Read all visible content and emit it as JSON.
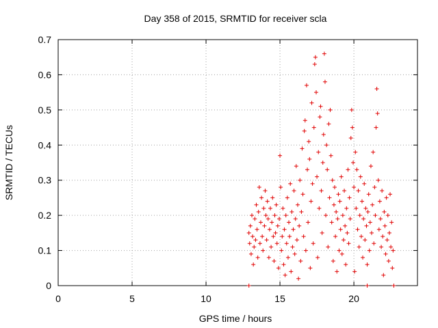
{
  "chart_data": {
    "type": "scatter",
    "title": "Day 358 of 2015, SRMTID for receiver scla",
    "xlabel": "GPS time / hours",
    "ylabel": "SRMTID / TECUs",
    "xlim": [
      0,
      24.3
    ],
    "ylim": [
      0,
      0.7
    ],
    "xticks": [
      0,
      5,
      10,
      15,
      20
    ],
    "yticks": [
      0,
      0.1,
      0.2,
      0.3,
      0.4,
      0.5,
      0.6,
      0.7
    ],
    "xtick_labels": [
      "0",
      "5",
      "10",
      "15",
      "20"
    ],
    "ytick_labels": [
      "0",
      "0.1",
      "0.2",
      "0.3",
      "0.4",
      "0.5",
      "0.6",
      "0.7"
    ],
    "grid": true,
    "marker": "+",
    "color": "#e00000",
    "series": [
      {
        "name": "SRMTID",
        "points": [
          [
            12.9,
            0.0
          ],
          [
            20.9,
            0.0
          ],
          [
            22.7,
            0.0
          ],
          [
            12.9,
            0.15
          ],
          [
            12.95,
            0.12
          ],
          [
            13.0,
            0.17
          ],
          [
            13.05,
            0.09
          ],
          [
            13.1,
            0.2
          ],
          [
            13.15,
            0.14
          ],
          [
            13.2,
            0.06
          ],
          [
            13.25,
            0.11
          ],
          [
            13.3,
            0.19
          ],
          [
            13.35,
            0.13
          ],
          [
            13.4,
            0.23
          ],
          [
            13.45,
            0.16
          ],
          [
            13.5,
            0.08
          ],
          [
            13.55,
            0.21
          ],
          [
            13.6,
            0.28
          ],
          [
            13.65,
            0.12
          ],
          [
            13.7,
            0.18
          ],
          [
            13.75,
            0.25
          ],
          [
            13.8,
            0.14
          ],
          [
            13.85,
            0.1
          ],
          [
            13.9,
            0.22
          ],
          [
            13.95,
            0.17
          ],
          [
            14.0,
            0.27
          ],
          [
            14.05,
            0.2
          ],
          [
            14.1,
            0.13
          ],
          [
            14.15,
            0.24
          ],
          [
            14.2,
            0.19
          ],
          [
            14.25,
            0.08
          ],
          [
            14.3,
            0.16
          ],
          [
            14.35,
            0.22
          ],
          [
            14.4,
            0.11
          ],
          [
            14.45,
            0.18
          ],
          [
            14.5,
            0.25
          ],
          [
            14.55,
            0.14
          ],
          [
            14.6,
            0.07
          ],
          [
            14.65,
            0.2
          ],
          [
            14.7,
            0.15
          ],
          [
            14.75,
            0.23
          ],
          [
            14.8,
            0.12
          ],
          [
            14.85,
            0.17
          ],
          [
            14.9,
            0.05
          ],
          [
            14.95,
            0.19
          ],
          [
            15.0,
            0.37
          ],
          [
            15.05,
            0.28
          ],
          [
            15.1,
            0.1
          ],
          [
            15.15,
            0.14
          ],
          [
            15.2,
            0.22
          ],
          [
            15.25,
            0.06
          ],
          [
            15.3,
            0.16
          ],
          [
            15.35,
            0.03
          ],
          [
            15.4,
            0.2
          ],
          [
            15.45,
            0.12
          ],
          [
            15.5,
            0.25
          ],
          [
            15.55,
            0.08
          ],
          [
            15.6,
            0.18
          ],
          [
            15.65,
            0.14
          ],
          [
            15.7,
            0.29
          ],
          [
            15.75,
            0.04
          ],
          [
            15.8,
            0.21
          ],
          [
            15.85,
            0.11
          ],
          [
            15.9,
            0.16
          ],
          [
            15.95,
            0.27
          ],
          [
            16.0,
            0.09
          ],
          [
            16.05,
            0.19
          ],
          [
            16.1,
            0.34
          ],
          [
            16.15,
            0.13
          ],
          [
            16.2,
            0.23
          ],
          [
            16.25,
            0.02
          ],
          [
            16.3,
            0.17
          ],
          [
            16.35,
            0.3
          ],
          [
            16.4,
            0.07
          ],
          [
            16.45,
            0.21
          ],
          [
            16.5,
            0.39
          ],
          [
            16.55,
            0.26
          ],
          [
            16.6,
            0.14
          ],
          [
            16.65,
            0.44
          ],
          [
            16.7,
            0.47
          ],
          [
            16.75,
            0.1
          ],
          [
            16.8,
            0.57
          ],
          [
            16.85,
            0.33
          ],
          [
            16.9,
            0.18
          ],
          [
            16.95,
            0.41
          ],
          [
            17.0,
            0.36
          ],
          [
            17.05,
            0.05
          ],
          [
            17.1,
            0.24
          ],
          [
            17.15,
            0.52
          ],
          [
            17.2,
            0.29
          ],
          [
            17.25,
            0.12
          ],
          [
            17.3,
            0.45
          ],
          [
            17.35,
            0.63
          ],
          [
            17.4,
            0.65
          ],
          [
            17.45,
            0.55
          ],
          [
            17.5,
            0.31
          ],
          [
            17.55,
            0.08
          ],
          [
            17.6,
            0.38
          ],
          [
            17.65,
            0.22
          ],
          [
            17.7,
            0.48
          ],
          [
            17.75,
            0.51
          ],
          [
            17.8,
            0.27
          ],
          [
            17.85,
            0.15
          ],
          [
            17.9,
            0.35
          ],
          [
            17.95,
            0.43
          ],
          [
            18.0,
            0.66
          ],
          [
            18.05,
            0.58
          ],
          [
            18.1,
            0.2
          ],
          [
            18.15,
            0.4
          ],
          [
            18.2,
            0.33
          ],
          [
            18.25,
            0.11
          ],
          [
            18.3,
            0.46
          ],
          [
            18.35,
            0.25
          ],
          [
            18.4,
            0.5
          ],
          [
            18.45,
            0.37
          ],
          [
            18.5,
            0.18
          ],
          [
            18.55,
            0.3
          ],
          [
            18.6,
            0.07
          ],
          [
            18.65,
            0.23
          ],
          [
            18.7,
            0.28
          ],
          [
            18.75,
            0.14
          ],
          [
            18.8,
            0.21
          ],
          [
            18.85,
            0.04
          ],
          [
            18.9,
            0.19
          ],
          [
            18.95,
            0.26
          ],
          [
            19.0,
            0.1
          ],
          [
            19.05,
            0.24
          ],
          [
            19.1,
            0.16
          ],
          [
            19.15,
            0.31
          ],
          [
            19.2,
            0.09
          ],
          [
            19.25,
            0.2
          ],
          [
            19.3,
            0.13
          ],
          [
            19.35,
            0.27
          ],
          [
            19.4,
            0.17
          ],
          [
            19.45,
            0.06
          ],
          [
            19.5,
            0.22
          ],
          [
            19.55,
            0.15
          ],
          [
            19.6,
            0.33
          ],
          [
            19.65,
            0.12
          ],
          [
            19.7,
            0.25
          ],
          [
            19.75,
            0.19
          ],
          [
            19.8,
            0.42
          ],
          [
            19.85,
            0.5
          ],
          [
            19.9,
            0.45
          ],
          [
            19.95,
            0.35
          ],
          [
            20.0,
            0.28
          ],
          [
            20.05,
            0.04
          ],
          [
            20.1,
            0.38
          ],
          [
            20.15,
            0.22
          ],
          [
            20.2,
            0.33
          ],
          [
            20.25,
            0.16
          ],
          [
            20.3,
            0.27
          ],
          [
            20.35,
            0.11
          ],
          [
            20.4,
            0.2
          ],
          [
            20.45,
            0.31
          ],
          [
            20.5,
            0.14
          ],
          [
            20.55,
            0.24
          ],
          [
            20.6,
            0.08
          ],
          [
            20.65,
            0.19
          ],
          [
            20.7,
            0.29
          ],
          [
            20.75,
            0.13
          ],
          [
            20.8,
            0.22
          ],
          [
            20.85,
            0.17
          ],
          [
            20.9,
            0.06
          ],
          [
            20.95,
            0.21
          ],
          [
            21.0,
            0.26
          ],
          [
            21.05,
            0.1
          ],
          [
            21.1,
            0.18
          ],
          [
            21.15,
            0.34
          ],
          [
            21.2,
            0.15
          ],
          [
            21.25,
            0.23
          ],
          [
            21.3,
            0.38
          ],
          [
            21.35,
            0.12
          ],
          [
            21.4,
            0.28
          ],
          [
            21.45,
            0.2
          ],
          [
            21.5,
            0.45
          ],
          [
            21.55,
            0.56
          ],
          [
            21.6,
            0.49
          ],
          [
            21.65,
            0.3
          ],
          [
            21.7,
            0.16
          ],
          [
            21.75,
            0.24
          ],
          [
            21.8,
            0.19
          ],
          [
            21.85,
            0.11
          ],
          [
            21.9,
            0.27
          ],
          [
            21.95,
            0.14
          ],
          [
            22.0,
            0.03
          ],
          [
            22.05,
            0.21
          ],
          [
            22.1,
            0.17
          ],
          [
            22.15,
            0.09
          ],
          [
            22.2,
            0.25
          ],
          [
            22.25,
            0.13
          ],
          [
            22.3,
            0.2
          ],
          [
            22.35,
            0.07
          ],
          [
            22.4,
            0.15
          ],
          [
            22.45,
            0.26
          ],
          [
            22.5,
            0.11
          ],
          [
            22.55,
            0.18
          ],
          [
            22.6,
            0.05
          ],
          [
            22.65,
            0.1
          ]
        ]
      }
    ]
  }
}
